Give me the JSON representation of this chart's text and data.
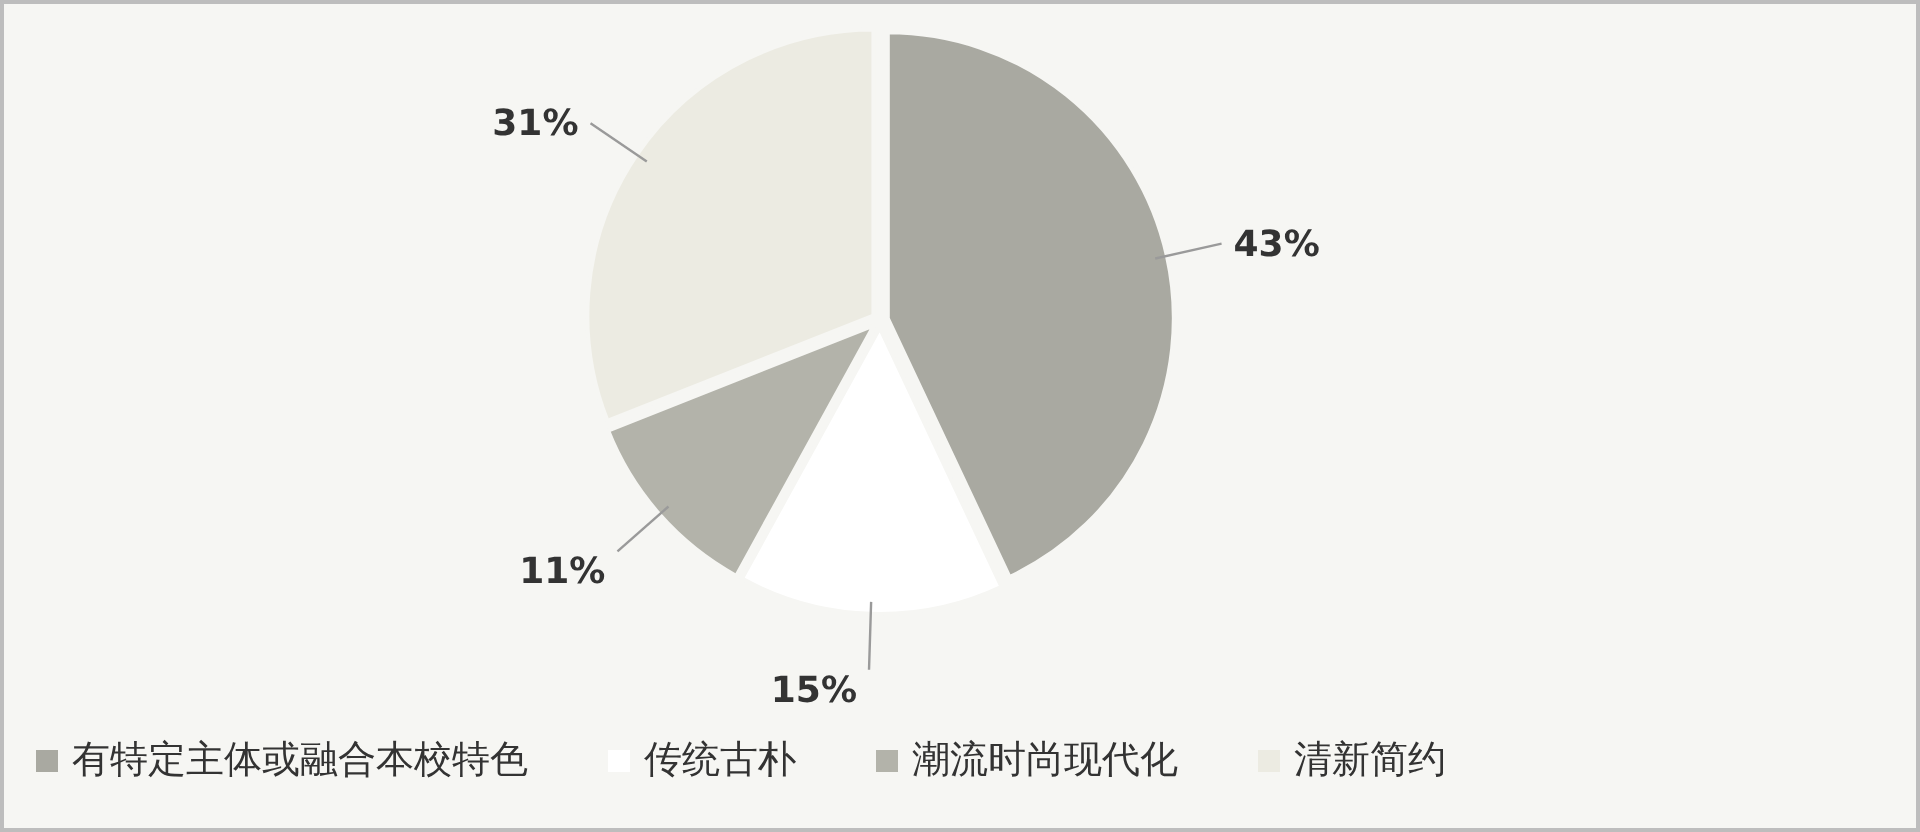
{
  "chart_data": {
    "type": "pie",
    "categories": [
      "有特定主体或融合本校特色",
      "传统古朴",
      "潮流时尚现代化",
      "清新简约"
    ],
    "values": [
      43,
      15,
      11,
      31
    ],
    "colors": [
      "#a9a9a1",
      "#ffffff",
      "#b3b3aa",
      "#ecebe2"
    ],
    "value_labels": [
      "43%",
      "15%",
      "11%",
      "31%"
    ],
    "legend": "bottom"
  }
}
